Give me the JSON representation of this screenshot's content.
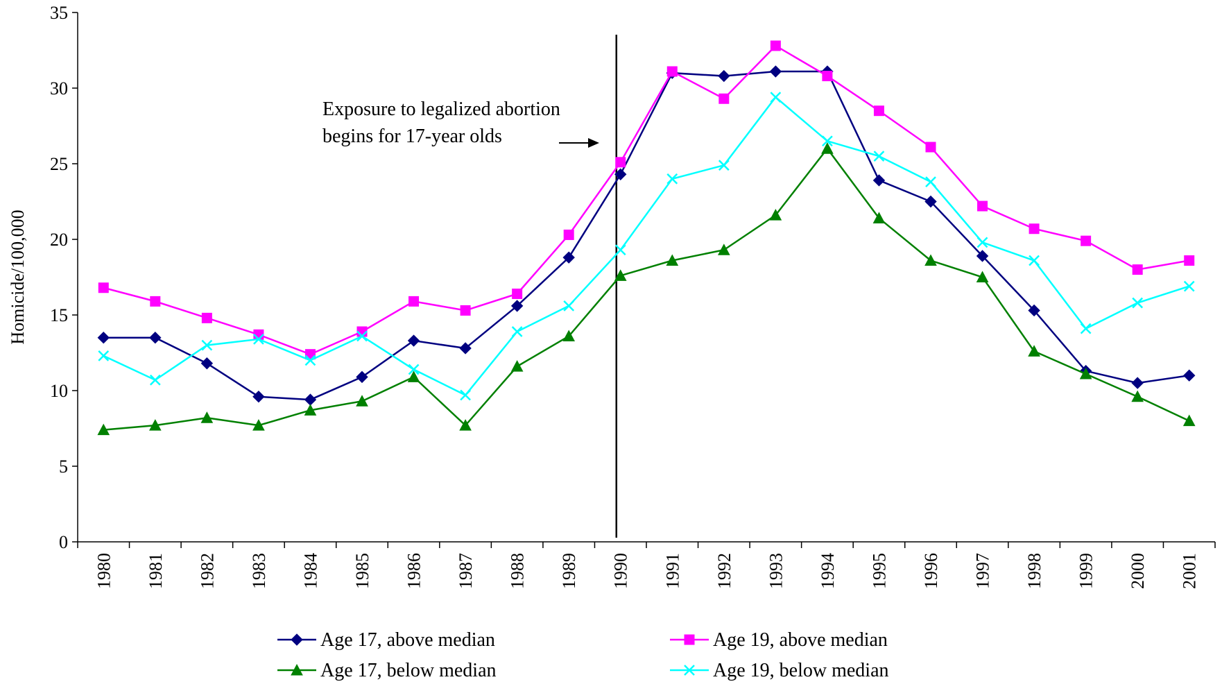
{
  "chart_data": {
    "type": "line",
    "title": "",
    "xlabel": "",
    "ylabel": "Homicide/100,000",
    "ylim": [
      0,
      35
    ],
    "yticks": [
      0,
      5,
      10,
      15,
      20,
      25,
      30,
      35
    ],
    "x": [
      "1980",
      "1981",
      "1982",
      "1983",
      "1984",
      "1985",
      "1986",
      "1987",
      "1988",
      "1989",
      "1990",
      "1991",
      "1992",
      "1993",
      "1994",
      "1995",
      "1996",
      "1997",
      "1998",
      "1999",
      "2000",
      "2001"
    ],
    "grid": false,
    "legend_placement": "bottom",
    "vertical_line_x": "1990",
    "annotation": {
      "lines": [
        "Exposure to legalized abortion",
        "begins for 17-year olds"
      ]
    },
    "series": [
      {
        "name": "Age 17, above median",
        "color": "#000080",
        "marker": "diamond",
        "values": [
          13.5,
          13.5,
          11.8,
          9.6,
          9.4,
          10.9,
          13.3,
          12.8,
          15.6,
          18.8,
          24.3,
          31.0,
          30.8,
          31.1,
          31.1,
          23.9,
          22.5,
          18.9,
          15.3,
          11.3,
          10.5,
          11.0
        ]
      },
      {
        "name": "Age 19, above median",
        "color": "#FF00FF",
        "marker": "square",
        "values": [
          16.8,
          15.9,
          14.8,
          13.7,
          12.4,
          13.9,
          15.9,
          15.3,
          16.4,
          20.3,
          25.1,
          31.1,
          29.3,
          32.8,
          30.8,
          28.5,
          26.1,
          22.2,
          20.7,
          19.9,
          18.0,
          18.6
        ]
      },
      {
        "name": "Age 17, below median",
        "color": "#008000",
        "marker": "triangle",
        "values": [
          7.4,
          7.7,
          8.2,
          7.7,
          8.7,
          9.3,
          10.9,
          7.7,
          11.6,
          13.6,
          17.6,
          18.6,
          19.3,
          21.6,
          26.0,
          21.4,
          18.6,
          17.5,
          12.6,
          11.1,
          9.6,
          8.0
        ]
      },
      {
        "name": "Age 19, below median",
        "color": "#00FFFF",
        "marker": "x",
        "values": [
          12.3,
          10.7,
          13.0,
          13.4,
          12.0,
          13.6,
          11.4,
          9.7,
          13.9,
          15.6,
          19.3,
          24.0,
          24.9,
          29.4,
          26.5,
          25.5,
          23.8,
          19.8,
          18.6,
          14.1,
          15.8,
          16.9
        ]
      }
    ]
  }
}
